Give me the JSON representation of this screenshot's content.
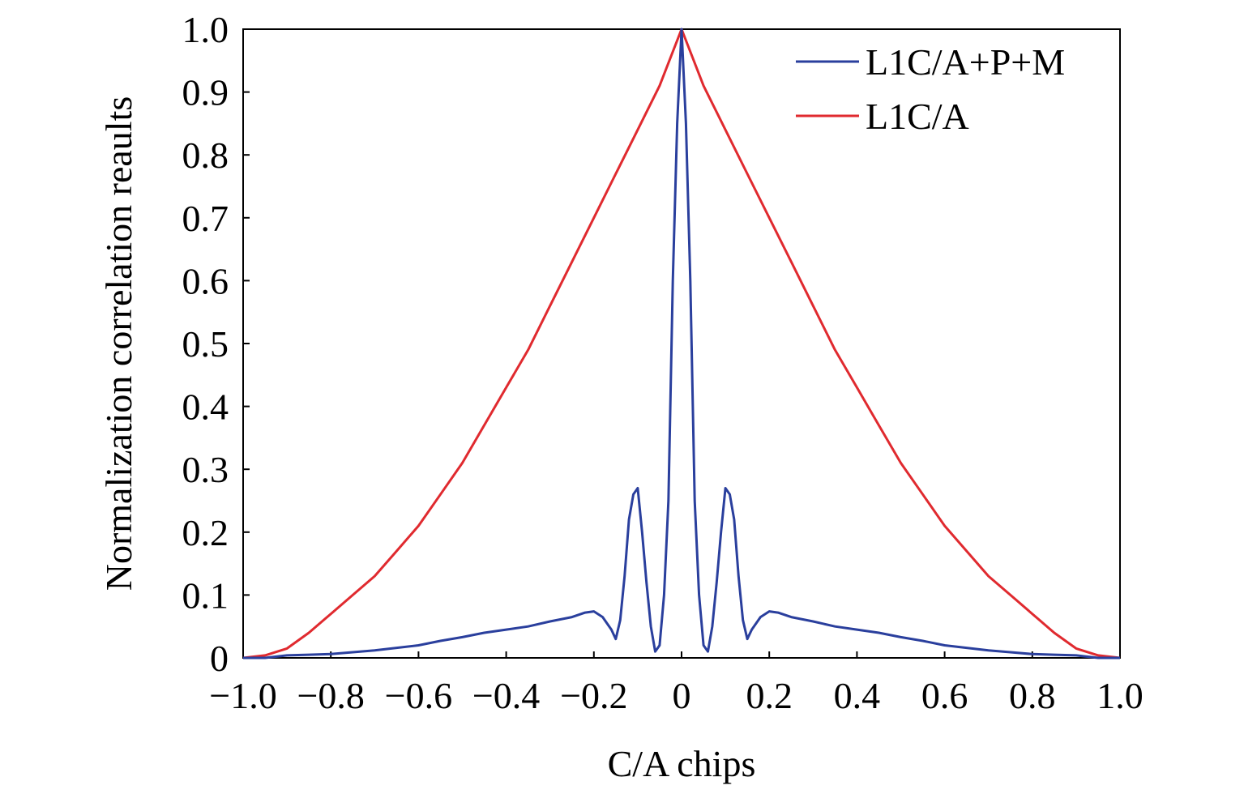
{
  "chart_data": {
    "type": "line",
    "title": "",
    "xlabel": "C/A chips",
    "ylabel": "Normalization correlation reaults",
    "xlim": [
      -1.0,
      1.0
    ],
    "ylim": [
      0,
      1.0
    ],
    "x_ticks": [
      -1.0,
      -0.8,
      -0.6,
      -0.4,
      -0.2,
      0,
      0.2,
      0.4,
      0.6,
      0.8,
      1.0
    ],
    "x_tick_labels": [
      "−1.0",
      "−0.8",
      "−0.6",
      "−0.4",
      "−0.2",
      "0",
      "0.2",
      "0.4",
      "0.6",
      "0.8",
      "1.0"
    ],
    "y_ticks": [
      0,
      0.1,
      0.2,
      0.3,
      0.4,
      0.5,
      0.6,
      0.7,
      0.8,
      0.9,
      1.0
    ],
    "y_tick_labels": [
      "0",
      "0.1",
      "0.2",
      "0.3",
      "0.4",
      "0.5",
      "0.6",
      "0.7",
      "0.8",
      "0.9",
      "1.0"
    ],
    "grid": false,
    "legend_position": "top-right",
    "series": [
      {
        "name": "L1C/A+P+M",
        "color": "#2a3f9d",
        "x": [
          -1.0,
          -0.95,
          -0.9,
          -0.85,
          -0.8,
          -0.75,
          -0.7,
          -0.65,
          -0.6,
          -0.55,
          -0.5,
          -0.45,
          -0.4,
          -0.35,
          -0.3,
          -0.25,
          -0.22,
          -0.2,
          -0.18,
          -0.16,
          -0.15,
          -0.14,
          -0.13,
          -0.12,
          -0.11,
          -0.1,
          -0.09,
          -0.08,
          -0.07,
          -0.06,
          -0.05,
          -0.04,
          -0.03,
          -0.02,
          -0.01,
          0.0,
          0.01,
          0.02,
          0.03,
          0.04,
          0.05,
          0.06,
          0.07,
          0.08,
          0.09,
          0.1,
          0.11,
          0.12,
          0.13,
          0.14,
          0.15,
          0.16,
          0.18,
          0.2,
          0.22,
          0.25,
          0.3,
          0.35,
          0.4,
          0.45,
          0.5,
          0.55,
          0.6,
          0.65,
          0.7,
          0.75,
          0.8,
          0.85,
          0.9,
          0.95,
          1.0
        ],
        "y": [
          0.0,
          0.0,
          0.004,
          0.005,
          0.006,
          0.009,
          0.012,
          0.016,
          0.02,
          0.027,
          0.033,
          0.04,
          0.045,
          0.05,
          0.058,
          0.065,
          0.072,
          0.074,
          0.065,
          0.045,
          0.03,
          0.06,
          0.13,
          0.22,
          0.26,
          0.27,
          0.2,
          0.12,
          0.05,
          0.01,
          0.02,
          0.1,
          0.25,
          0.6,
          0.85,
          1.0,
          0.85,
          0.6,
          0.25,
          0.1,
          0.02,
          0.01,
          0.05,
          0.12,
          0.2,
          0.27,
          0.26,
          0.22,
          0.13,
          0.06,
          0.03,
          0.045,
          0.065,
          0.074,
          0.072,
          0.065,
          0.058,
          0.05,
          0.045,
          0.04,
          0.033,
          0.027,
          0.02,
          0.016,
          0.012,
          0.009,
          0.006,
          0.005,
          0.004,
          0.0,
          0.0
        ]
      },
      {
        "name": "L1C/A",
        "color": "#e02a2f",
        "x": [
          -1.0,
          -0.95,
          -0.9,
          -0.85,
          -0.8,
          -0.75,
          -0.7,
          -0.65,
          -0.6,
          -0.55,
          -0.5,
          -0.45,
          -0.4,
          -0.35,
          -0.3,
          -0.25,
          -0.2,
          -0.15,
          -0.1,
          -0.05,
          0.0,
          0.05,
          0.1,
          0.15,
          0.2,
          0.25,
          0.3,
          0.35,
          0.4,
          0.45,
          0.5,
          0.55,
          0.6,
          0.65,
          0.7,
          0.75,
          0.8,
          0.85,
          0.9,
          0.95,
          1.0
        ],
        "y": [
          0.0,
          0.004,
          0.015,
          0.04,
          0.07,
          0.1,
          0.13,
          0.17,
          0.21,
          0.26,
          0.31,
          0.37,
          0.43,
          0.49,
          0.56,
          0.63,
          0.7,
          0.77,
          0.84,
          0.91,
          1.0,
          0.91,
          0.84,
          0.77,
          0.7,
          0.63,
          0.56,
          0.49,
          0.43,
          0.37,
          0.31,
          0.26,
          0.21,
          0.17,
          0.13,
          0.1,
          0.07,
          0.04,
          0.015,
          0.004,
          0.0
        ]
      }
    ]
  }
}
